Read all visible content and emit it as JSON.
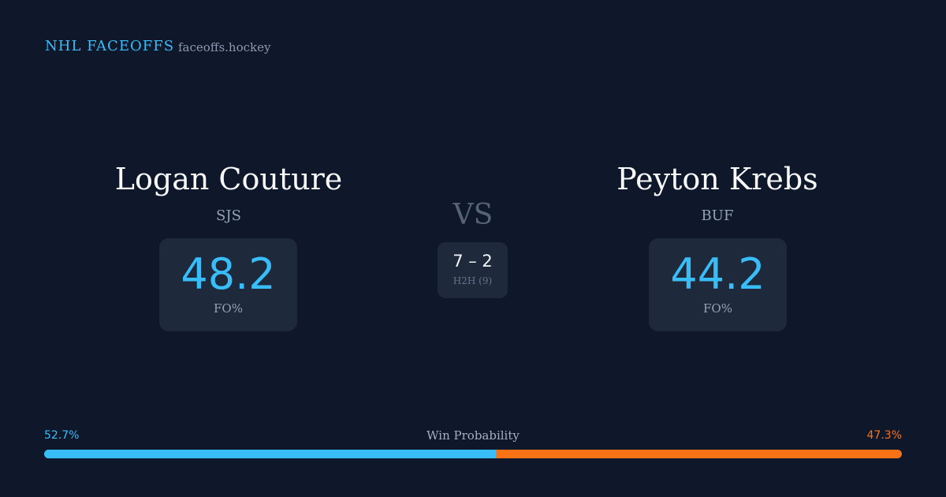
{
  "header": {
    "title": "NHL FACEOFFS",
    "site": "faceoffs.hockey"
  },
  "players": [
    {
      "name": "Logan Couture",
      "team": "SJS",
      "fo_pct": 48.2,
      "fo_label": "FO%"
    },
    {
      "name": "Peyton Krebs",
      "team": "BUF",
      "fo_pct": 44.2,
      "fo_label": "FO%"
    }
  ],
  "versus": "VS",
  "head_to_head": {
    "record": "7 – 2",
    "label": "H2H (9)"
  },
  "win_probability": {
    "label": "Win Probability",
    "left": {
      "value": 52.7,
      "label": "52.7%",
      "color": "#38bdf8"
    },
    "right": {
      "value": 47.3,
      "label": "47.3%",
      "color": "#f97316"
    }
  }
}
